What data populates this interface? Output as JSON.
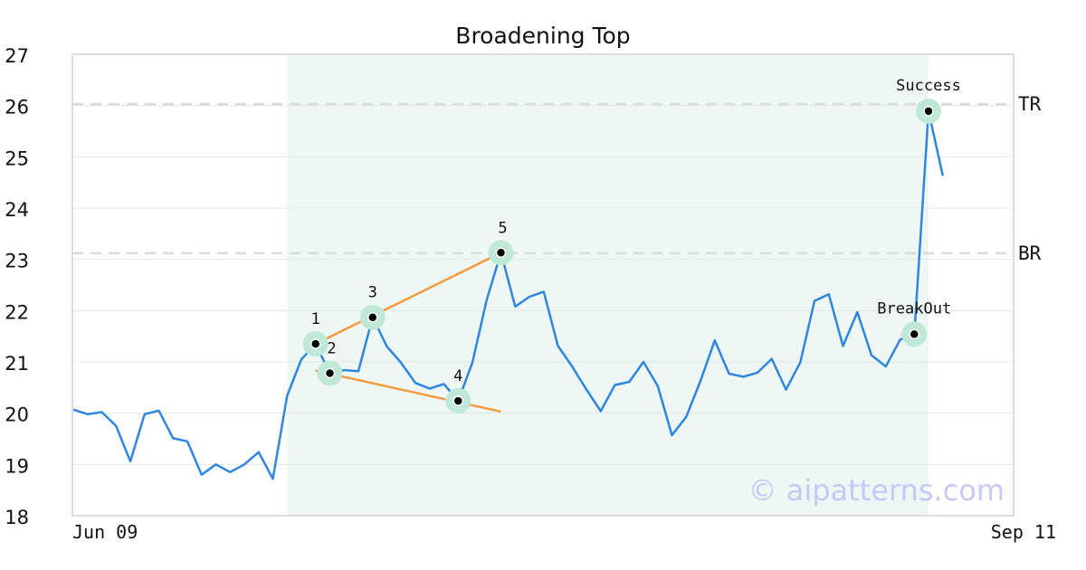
{
  "chart_data": {
    "type": "line",
    "title": "Broadening Top",
    "ylim": [
      18,
      27
    ],
    "yticks": [
      18,
      19,
      20,
      21,
      22,
      23,
      24,
      25,
      26,
      27
    ],
    "xtick_labels": [
      {
        "index": 0,
        "label": "Jun 09"
      },
      {
        "index": 64,
        "label": "Sep 11"
      }
    ],
    "grid": true,
    "series": [
      {
        "values": [
          20.07,
          19.98,
          20.02,
          19.75,
          19.06,
          19.98,
          20.05,
          19.51,
          19.45,
          18.8,
          19.0,
          18.85,
          19.0,
          19.24,
          18.72,
          20.34,
          21.05,
          21.35,
          20.78,
          20.84,
          20.82,
          21.87,
          21.3,
          20.98,
          20.59,
          20.48,
          20.57,
          20.24,
          20.99,
          22.21,
          23.13,
          22.08,
          22.27,
          22.37,
          21.31,
          20.91,
          20.46,
          20.04,
          20.55,
          20.61,
          21.0,
          20.53,
          19.57,
          19.93,
          20.63,
          21.42,
          20.77,
          20.71,
          20.79,
          21.06,
          20.46,
          20.99,
          22.19,
          22.32,
          21.31,
          21.97,
          21.13,
          20.91,
          21.43,
          21.54,
          25.89,
          24.63
        ],
        "color": "#2e86de"
      }
    ],
    "pattern_region": {
      "start_index": 15,
      "end_index": 60,
      "color": "#eef7f4"
    },
    "levels": [
      {
        "name": "TR",
        "value": 26.03
      },
      {
        "name": "BR",
        "value": 23.12
      }
    ],
    "trendlines": [
      {
        "from": [
          17,
          21.35
        ],
        "to": [
          30,
          23.13
        ],
        "color": "#f59a3c"
      },
      {
        "from": [
          17,
          20.83
        ],
        "to": [
          30,
          20.03
        ],
        "color": "#f59a3c"
      }
    ],
    "points": [
      {
        "label": "1",
        "index": 17,
        "value": 21.35
      },
      {
        "label": "2",
        "index": 18,
        "value": 20.78
      },
      {
        "label": "3",
        "index": 21,
        "value": 21.87
      },
      {
        "label": "4",
        "index": 27,
        "value": 20.24
      },
      {
        "label": "5",
        "index": 30,
        "value": 23.13
      },
      {
        "label": "BreakOut",
        "index": 59,
        "value": 21.54
      },
      {
        "label": "Success",
        "index": 60,
        "value": 25.89
      }
    ],
    "watermark": "© aipatterns.com"
  }
}
